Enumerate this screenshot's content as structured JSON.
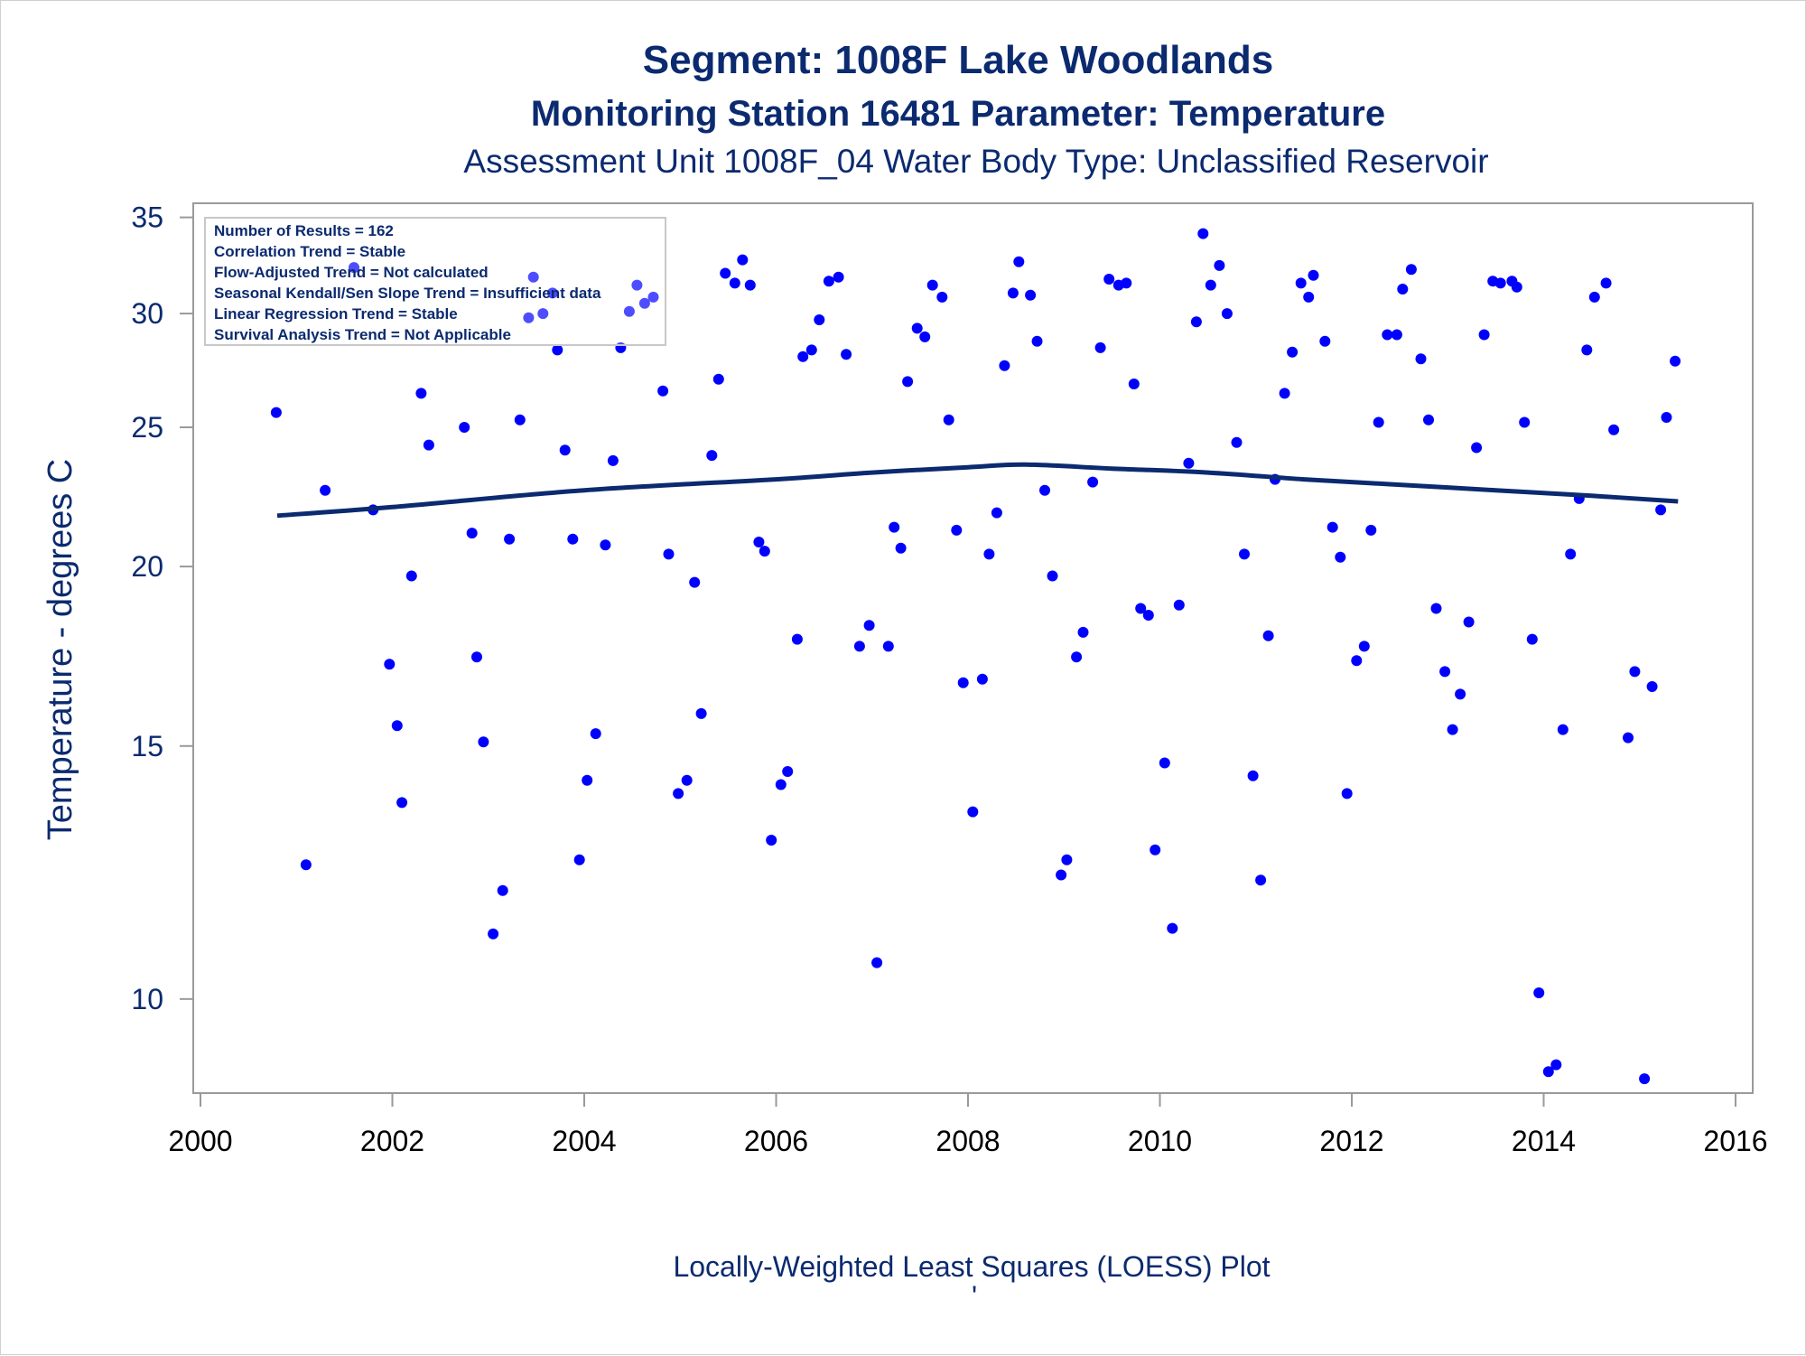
{
  "titles": {
    "line1": "Segment: 1008F  Lake Woodlands",
    "line2": "Monitoring Station 16481 Parameter: Temperature",
    "line3": "Assessment Unit 1008F_04   Water Body Type: Unclassified Reservoir"
  },
  "footnote": "Locally-Weighted Least Squares (LOESS) Plot",
  "footnote_mark": "'",
  "inset": [
    "Number of Results = 162",
    "Correlation Trend = Stable",
    "Flow-Adjusted Trend = Not calculated",
    "Seasonal Kendall/Sen Slope Trend = Insufficient data",
    "Linear Regression Trend = Stable",
    "Survival Analysis Trend = Not Applicable"
  ],
  "colors": {
    "points": "#0000ff",
    "loess": "#0b2a6f",
    "text": "#0b2a6f",
    "axis": "#9a9a9a"
  },
  "chart_data": {
    "type": "scatter",
    "ylabel": "Temperature - degrees C",
    "xlabel": "",
    "xlim": [
      2000,
      2016
    ],
    "ylim": [
      8.6,
      35.8
    ],
    "yscale": "log",
    "x_ticks": [
      2000,
      2002,
      2004,
      2006,
      2008,
      2010,
      2012,
      2014,
      2016
    ],
    "y_ticks": [
      10,
      15,
      20,
      25,
      30,
      35
    ],
    "legend": "inset top-left",
    "grid": false,
    "points": [
      [
        2000.79,
        25.6
      ],
      [
        2001.1,
        12.4
      ],
      [
        2001.3,
        22.6
      ],
      [
        2001.6,
        32.3
      ],
      [
        2001.8,
        21.9
      ],
      [
        2001.97,
        17.1
      ],
      [
        2002.05,
        15.5
      ],
      [
        2002.1,
        13.7
      ],
      [
        2002.2,
        19.7
      ],
      [
        2002.3,
        26.4
      ],
      [
        2002.38,
        24.3
      ],
      [
        2002.75,
        25.0
      ],
      [
        2002.83,
        21.1
      ],
      [
        2002.88,
        17.3
      ],
      [
        2002.95,
        15.1
      ],
      [
        2003.05,
        11.1
      ],
      [
        2003.15,
        11.9
      ],
      [
        2003.22,
        20.9
      ],
      [
        2003.33,
        25.3
      ],
      [
        2003.42,
        29.8
      ],
      [
        2003.47,
        31.8
      ],
      [
        2003.57,
        30.0
      ],
      [
        2003.67,
        31.0
      ],
      [
        2003.72,
        28.3
      ],
      [
        2003.8,
        24.1
      ],
      [
        2003.88,
        20.9
      ],
      [
        2003.95,
        12.5
      ],
      [
        2004.03,
        14.2
      ],
      [
        2004.12,
        15.3
      ],
      [
        2004.22,
        20.7
      ],
      [
        2004.3,
        23.7
      ],
      [
        2004.38,
        28.4
      ],
      [
        2004.47,
        30.1
      ],
      [
        2004.55,
        31.4
      ],
      [
        2004.63,
        30.5
      ],
      [
        2004.72,
        30.8
      ],
      [
        2004.82,
        26.5
      ],
      [
        2004.88,
        20.4
      ],
      [
        2004.98,
        13.9
      ],
      [
        2005.07,
        14.2
      ],
      [
        2005.15,
        19.5
      ],
      [
        2005.22,
        15.8
      ],
      [
        2005.33,
        23.9
      ],
      [
        2005.4,
        27.0
      ],
      [
        2005.47,
        32.0
      ],
      [
        2005.57,
        31.5
      ],
      [
        2005.65,
        32.7
      ],
      [
        2005.73,
        31.4
      ],
      [
        2005.82,
        20.8
      ],
      [
        2005.88,
        20.5
      ],
      [
        2005.95,
        12.9
      ],
      [
        2006.05,
        14.1
      ],
      [
        2006.12,
        14.4
      ],
      [
        2006.22,
        17.8
      ],
      [
        2006.28,
        28.0
      ],
      [
        2006.37,
        28.3
      ],
      [
        2006.45,
        29.7
      ],
      [
        2006.55,
        31.6
      ],
      [
        2006.65,
        31.8
      ],
      [
        2006.73,
        28.1
      ],
      [
        2006.87,
        17.6
      ],
      [
        2006.97,
        18.2
      ],
      [
        2007.05,
        10.6
      ],
      [
        2007.17,
        17.6
      ],
      [
        2007.23,
        21.3
      ],
      [
        2007.3,
        20.6
      ],
      [
        2007.37,
        26.9
      ],
      [
        2007.47,
        29.3
      ],
      [
        2007.55,
        28.9
      ],
      [
        2007.63,
        31.4
      ],
      [
        2007.73,
        30.8
      ],
      [
        2007.8,
        25.3
      ],
      [
        2007.88,
        21.2
      ],
      [
        2007.95,
        16.6
      ],
      [
        2008.05,
        13.5
      ],
      [
        2008.15,
        16.7
      ],
      [
        2008.22,
        20.4
      ],
      [
        2008.3,
        21.8
      ],
      [
        2008.38,
        27.6
      ],
      [
        2008.47,
        31.0
      ],
      [
        2008.53,
        32.6
      ],
      [
        2008.65,
        30.9
      ],
      [
        2008.72,
        28.7
      ],
      [
        2008.8,
        22.6
      ],
      [
        2008.88,
        19.7
      ],
      [
        2008.97,
        12.2
      ],
      [
        2009.03,
        12.5
      ],
      [
        2009.13,
        17.3
      ],
      [
        2009.2,
        18.0
      ],
      [
        2009.3,
        22.9
      ],
      [
        2009.38,
        28.4
      ],
      [
        2009.47,
        31.7
      ],
      [
        2009.57,
        31.4
      ],
      [
        2009.65,
        31.5
      ],
      [
        2009.73,
        26.8
      ],
      [
        2009.8,
        18.7
      ],
      [
        2009.88,
        18.5
      ],
      [
        2009.95,
        12.7
      ],
      [
        2010.05,
        14.6
      ],
      [
        2010.13,
        11.2
      ],
      [
        2010.2,
        18.8
      ],
      [
        2010.3,
        23.6
      ],
      [
        2010.38,
        29.6
      ],
      [
        2010.45,
        34.1
      ],
      [
        2010.53,
        31.4
      ],
      [
        2010.62,
        32.4
      ],
      [
        2010.7,
        30.0
      ],
      [
        2010.8,
        24.4
      ],
      [
        2010.88,
        20.4
      ],
      [
        2010.97,
        14.3
      ],
      [
        2011.05,
        12.1
      ],
      [
        2011.13,
        17.9
      ],
      [
        2011.2,
        23.0
      ],
      [
        2011.3,
        26.4
      ],
      [
        2011.38,
        28.2
      ],
      [
        2011.47,
        31.5
      ],
      [
        2011.55,
        30.8
      ],
      [
        2011.6,
        31.9
      ],
      [
        2011.72,
        28.7
      ],
      [
        2011.8,
        21.3
      ],
      [
        2011.88,
        20.3
      ],
      [
        2011.95,
        13.9
      ],
      [
        2012.05,
        17.2
      ],
      [
        2012.13,
        17.6
      ],
      [
        2012.2,
        21.2
      ],
      [
        2012.28,
        25.2
      ],
      [
        2012.37,
        29.0
      ],
      [
        2012.47,
        29.0
      ],
      [
        2012.53,
        31.2
      ],
      [
        2012.62,
        32.2
      ],
      [
        2012.72,
        27.9
      ],
      [
        2012.8,
        25.3
      ],
      [
        2012.88,
        18.7
      ],
      [
        2012.97,
        16.9
      ],
      [
        2013.05,
        15.4
      ],
      [
        2013.13,
        16.3
      ],
      [
        2013.22,
        18.3
      ],
      [
        2013.3,
        24.2
      ],
      [
        2013.38,
        29.0
      ],
      [
        2013.47,
        31.6
      ],
      [
        2013.55,
        31.5
      ],
      [
        2013.67,
        31.6
      ],
      [
        2013.72,
        31.3
      ],
      [
        2013.8,
        25.2
      ],
      [
        2013.88,
        17.8
      ],
      [
        2013.95,
        10.1
      ],
      [
        2014.05,
        8.9
      ],
      [
        2014.13,
        9.0
      ],
      [
        2014.2,
        15.4
      ],
      [
        2014.28,
        20.4
      ],
      [
        2014.37,
        22.3
      ],
      [
        2014.45,
        28.3
      ],
      [
        2014.53,
        30.8
      ],
      [
        2014.65,
        31.5
      ],
      [
        2014.73,
        24.9
      ],
      [
        2014.88,
        15.2
      ],
      [
        2014.95,
        16.9
      ],
      [
        2015.05,
        8.8
      ],
      [
        2015.13,
        16.5
      ],
      [
        2015.22,
        21.9
      ],
      [
        2015.28,
        25.4
      ],
      [
        2015.37,
        27.8
      ]
    ],
    "loess": [
      [
        2000.8,
        21.7
      ],
      [
        2002.0,
        22.0
      ],
      [
        2004.0,
        22.6
      ],
      [
        2006.0,
        23.0
      ],
      [
        2007.0,
        23.25
      ],
      [
        2008.0,
        23.45
      ],
      [
        2008.6,
        23.55
      ],
      [
        2009.5,
        23.4
      ],
      [
        2010.5,
        23.25
      ],
      [
        2011.5,
        23.0
      ],
      [
        2012.5,
        22.8
      ],
      [
        2013.5,
        22.6
      ],
      [
        2014.5,
        22.4
      ],
      [
        2015.4,
        22.2
      ]
    ]
  }
}
